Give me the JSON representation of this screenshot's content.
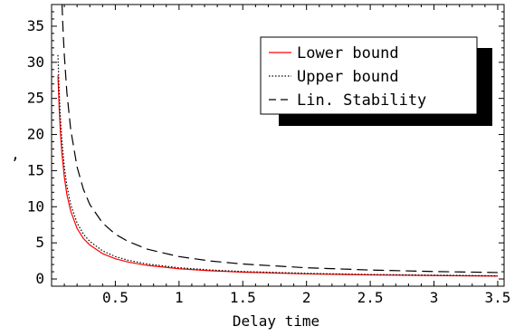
{
  "chart_data": {
    "type": "line",
    "title": "",
    "xlabel": "Delay time",
    "ylabel": ",",
    "xlim": [
      0,
      3.55
    ],
    "ylim": [
      -1,
      38
    ],
    "x_ticks": [
      0.5,
      1,
      1.5,
      2,
      2.5,
      3,
      3.5
    ],
    "x_tick_labels": [
      "0.5",
      "1",
      "1.5",
      "2",
      "2.5",
      "3",
      "3.5"
    ],
    "y_ticks": [
      0,
      5,
      10,
      15,
      20,
      25,
      30,
      35
    ],
    "y_tick_labels": [
      "0",
      "5",
      "10",
      "15",
      "20",
      "25",
      "30",
      "35"
    ],
    "grid": false,
    "legend_position": "top-right",
    "series": [
      {
        "name": "Lower bound",
        "color": "#ff0000",
        "style": "solid",
        "x": [
          0.05,
          0.06,
          0.07,
          0.08,
          0.1,
          0.12,
          0.15,
          0.2,
          0.25,
          0.3,
          0.4,
          0.5,
          0.6,
          0.75,
          1.0,
          1.25,
          1.5,
          2.0,
          2.5,
          3.0,
          3.5
        ],
        "y": [
          28.2,
          23.5,
          20.1,
          17.6,
          14.1,
          11.7,
          9.4,
          7.0,
          5.6,
          4.7,
          3.5,
          2.8,
          2.35,
          1.88,
          1.41,
          1.13,
          0.94,
          0.7,
          0.56,
          0.47,
          0.4
        ]
      },
      {
        "name": "Upper bound",
        "color": "#000000",
        "style": "dotted",
        "x": [
          0.05,
          0.06,
          0.07,
          0.08,
          0.1,
          0.12,
          0.15,
          0.2,
          0.25,
          0.3,
          0.4,
          0.5,
          0.6,
          0.75,
          1.0,
          1.25,
          1.5,
          2.0,
          2.5,
          3.0,
          3.5
        ],
        "y": [
          31.0,
          25.8,
          22.1,
          19.4,
          15.5,
          12.9,
          10.3,
          7.75,
          6.2,
          5.2,
          3.9,
          3.1,
          2.6,
          2.07,
          1.55,
          1.24,
          1.03,
          0.78,
          0.62,
          0.52,
          0.44
        ]
      },
      {
        "name": "Lin. Stability",
        "color": "#000000",
        "style": "dashed",
        "x": [
          0.082,
          0.09,
          0.1,
          0.12,
          0.15,
          0.2,
          0.25,
          0.3,
          0.4,
          0.5,
          0.6,
          0.75,
          1.0,
          1.25,
          1.5,
          2.0,
          2.5,
          3.0,
          3.5
        ],
        "y": [
          38.0,
          34.4,
          31.0,
          25.8,
          20.7,
          15.5,
          12.4,
          10.3,
          7.75,
          6.2,
          5.2,
          4.13,
          3.1,
          2.48,
          2.07,
          1.55,
          1.24,
          1.03,
          0.89
        ]
      }
    ]
  }
}
